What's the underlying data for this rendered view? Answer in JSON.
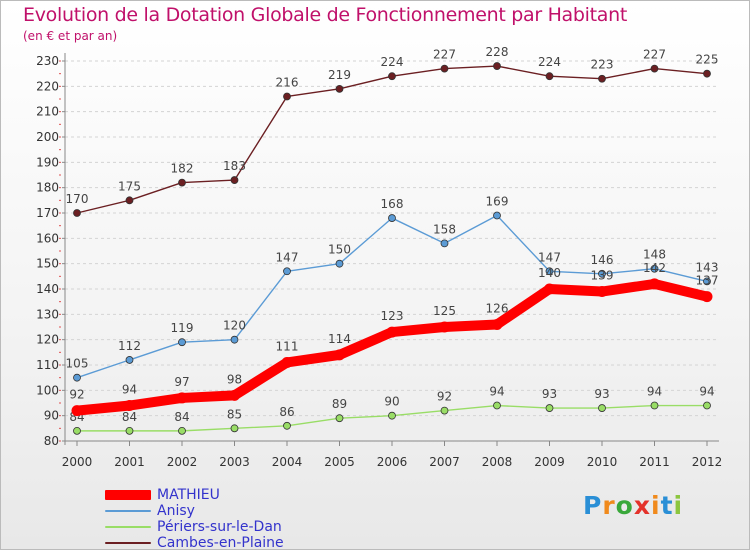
{
  "title": "Evolution de la Dotation Globale de Fonctionnement par Habitant",
  "subtitle": "(en € et par an)",
  "chart_data": {
    "type": "line",
    "categories": [
      "2000",
      "2001",
      "2002",
      "2003",
      "2004",
      "2005",
      "2006",
      "2007",
      "2008",
      "2009",
      "2010",
      "2011",
      "2012"
    ],
    "ylim": [
      80,
      230
    ],
    "yticks": [
      80,
      90,
      100,
      110,
      120,
      130,
      140,
      150,
      160,
      170,
      180,
      190,
      200,
      210,
      220,
      230
    ],
    "grid": "horizontal",
    "legend_position": "bottom-left",
    "series": [
      {
        "name": "Cambes-en-Plaine",
        "color": "#6b1f22",
        "values": [
          170,
          175,
          182,
          183,
          216,
          219,
          224,
          227,
          228,
          224,
          223,
          227,
          225
        ]
      },
      {
        "name": "Anisy",
        "color": "#5b9bd5",
        "values": [
          105,
          112,
          119,
          120,
          147,
          150,
          168,
          158,
          169,
          147,
          146,
          148,
          143
        ]
      },
      {
        "name": "Périers-sur-le-Dan",
        "color": "#99dd66",
        "values": [
          84,
          84,
          84,
          85,
          86,
          89,
          90,
          92,
          94,
          93,
          93,
          94,
          94
        ]
      },
      {
        "name": "MATHIEU",
        "color": "#ff0000",
        "values": [
          92,
          94,
          97,
          98,
          111,
          114,
          123,
          125,
          126,
          140,
          139,
          142,
          137
        ]
      }
    ],
    "data_labels": {
      "Cambes-en-Plaine": [
        "170",
        "175",
        "182",
        "183",
        "216",
        "219",
        "224",
        "227",
        "228",
        "224",
        "223",
        "227",
        "225"
      ],
      "Anisy": [
        "105",
        "112",
        "119",
        "120",
        "147",
        "150",
        "168",
        "158",
        "169",
        "147",
        "146",
        "148",
        "143"
      ],
      "Périers-sur-le-Dan": [
        "84",
        "84",
        "84",
        "85",
        "86",
        "89",
        "90",
        "92",
        "94",
        "93",
        "93",
        "94",
        "94"
      ],
      "MATHIEU": [
        "92",
        "94",
        "97",
        "98",
        "111",
        "114",
        "123",
        "125",
        "126",
        "140",
        "139",
        "142",
        "137"
      ]
    }
  },
  "legend": [
    {
      "label": "MATHIEU",
      "color": "#ff0000",
      "emphasis": true
    },
    {
      "label": "Anisy",
      "color": "#5b9bd5",
      "emphasis": false
    },
    {
      "label": "Périers-sur-le-Dan",
      "color": "#99dd66",
      "emphasis": false
    },
    {
      "label": "Cambes-en-Plaine",
      "color": "#6b1f22",
      "emphasis": false
    }
  ],
  "logo": {
    "letters": [
      "P",
      "r",
      "o",
      "x",
      "i",
      "t",
      "i"
    ],
    "colors": [
      "#2a8fd6",
      "#f08a1c",
      "#39a83a",
      "#e4322b",
      "#f08a1c",
      "#2a8fd6",
      "#8cc63f"
    ]
  }
}
